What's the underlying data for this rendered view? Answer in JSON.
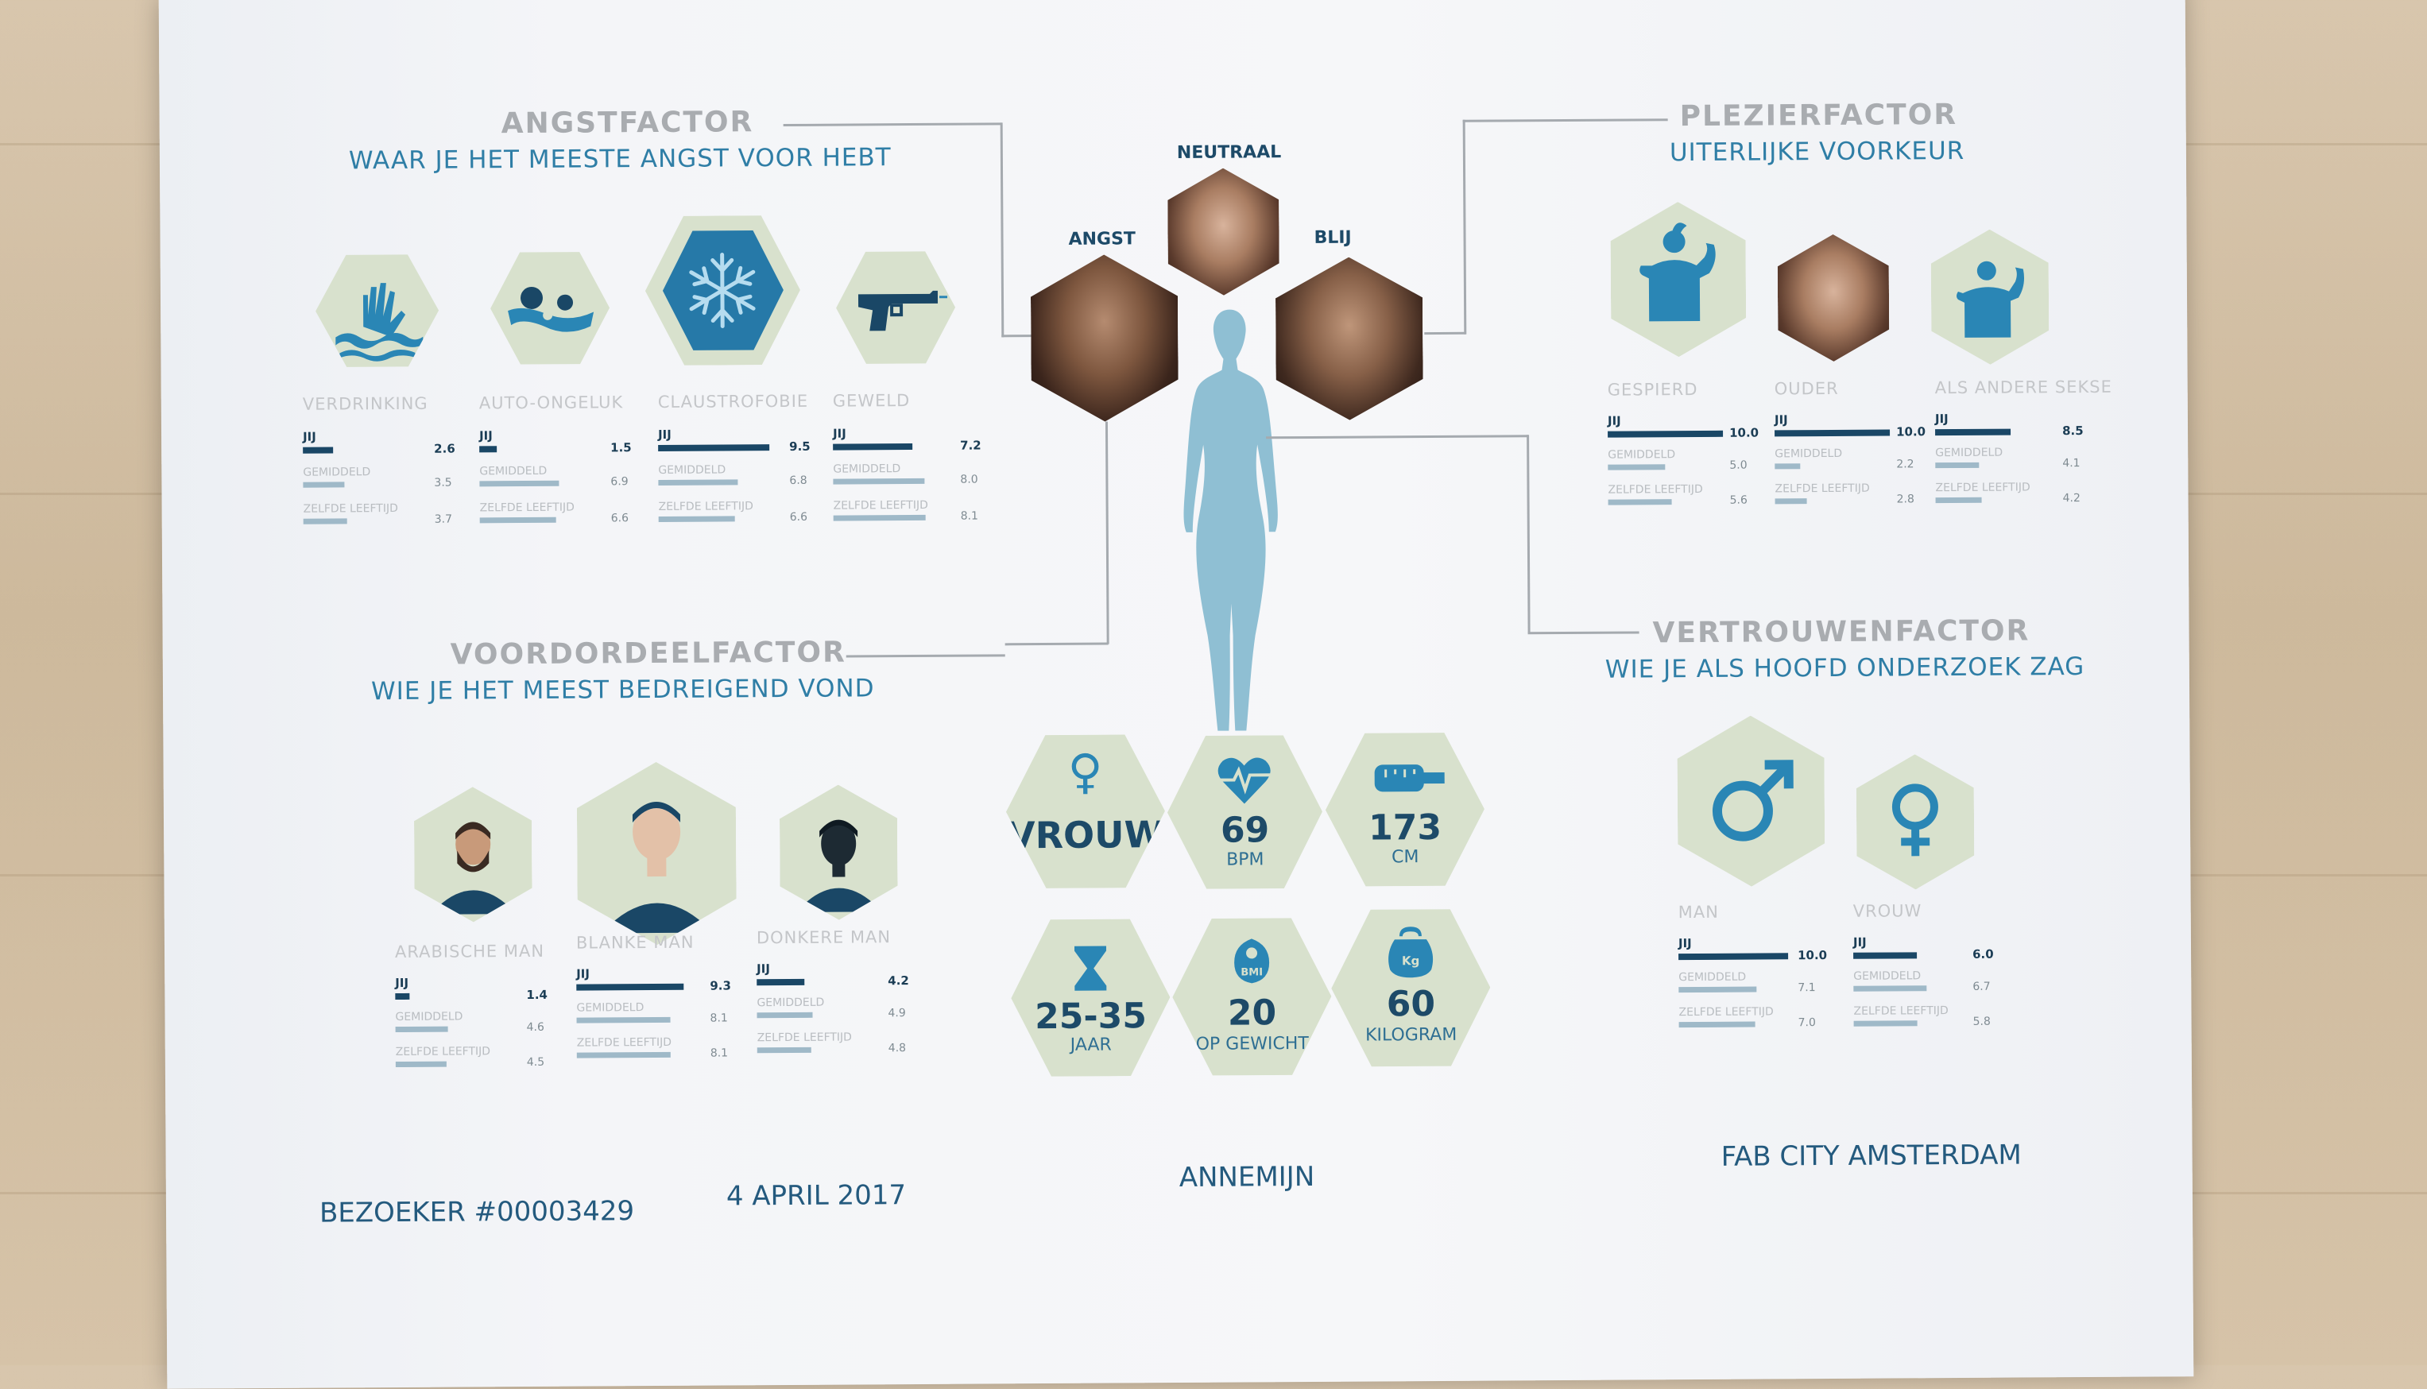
{
  "angst": {
    "title": "ANGSTFACTOR",
    "subtitle": "WAAR JE HET MEESTE ANGST VOOR HEBT",
    "items": [
      {
        "label": "VERDRINKING",
        "icon": "drowning-hand-icon",
        "jij": "2.6",
        "gem": "3.5",
        "zelfde": "3.7",
        "jij_frac": 0.26
      },
      {
        "label": "AUTO-ONGELUK",
        "icon": "car-crash-icon",
        "jij": "1.5",
        "gem": "6.9",
        "zelfde": "6.6",
        "jij_frac": 0.15
      },
      {
        "label": "CLAUSTROFOBIE",
        "icon": "snowflake-icon",
        "jij": "9.5",
        "gem": "6.8",
        "zelfde": "6.6",
        "jij_frac": 0.95
      },
      {
        "label": "GEWELD",
        "icon": "gun-icon",
        "jij": "7.2",
        "gem": "8.0",
        "zelfde": "8.1",
        "jij_frac": 0.72
      }
    ]
  },
  "stat_labels": {
    "jij": "JIJ",
    "gem": "GEMIDDELD",
    "zelfde": "ZELFDE LEEFTIJD"
  },
  "faces": {
    "neutraal": "NEUTRAAL",
    "angst": "ANGST",
    "blij": "BLIJ"
  },
  "plezier": {
    "title": "PLEZIERFACTOR",
    "subtitle": "UITERLIJKE VOORKEUR",
    "items": [
      {
        "label": "GESPIERD",
        "jij": "10.0",
        "gem": "5.0",
        "zelfde": "5.6",
        "jij_frac": 1.0
      },
      {
        "label": "OUDER",
        "jij": "10.0",
        "gem": "2.2",
        "zelfde": "2.8",
        "jij_frac": 1.0
      },
      {
        "label": "ALS ANDERE SEKSE",
        "jij": "8.5",
        "gem": "4.1",
        "zelfde": "4.2",
        "jij_frac": 0.85
      }
    ]
  },
  "vooroordeel": {
    "title": "VOORDORDEELFACTOR",
    "subtitle": "WIE JE HET MEEST BEDREIGEND VOND",
    "items": [
      {
        "label": "ARABISCHE MAN",
        "jij": "1.4",
        "gem": "4.6",
        "zelfde": "4.5",
        "jij_frac": 0.14
      },
      {
        "label": "BLANKE MAN",
        "jij": "9.3",
        "gem": "8.1",
        "zelfde": "8.1",
        "jij_frac": 0.93
      },
      {
        "label": "DONKERE MAN",
        "jij": "4.2",
        "gem": "4.9",
        "zelfde": "4.8",
        "jij_frac": 0.42
      }
    ]
  },
  "vertrouwen": {
    "title": "VERTROUWENFACTOR",
    "subtitle": "WIE JE ALS HOOFD ONDERZOEK ZAG",
    "items": [
      {
        "label": "MAN",
        "jij": "10.0",
        "gem": "7.1",
        "zelfde": "7.0",
        "jij_frac": 1.0
      },
      {
        "label": "VROUW",
        "jij": "6.0",
        "gem": "6.7",
        "zelfde": "5.8",
        "jij_frac": 0.6
      }
    ]
  },
  "stats": {
    "gender": "VROUW",
    "bpm_value": "69",
    "bpm_unit": "BPM",
    "height_value": "173",
    "height_unit": "CM",
    "age_value": "25-35",
    "age_unit": "JAAR",
    "bmi_value": "20",
    "bmi_unit": "OP GEWICHT",
    "weight_value": "60",
    "weight_unit": "KILOGRAM"
  },
  "footer": {
    "visitor": "BEZOEKER #00003429",
    "date": "4 APRIL 2017",
    "name": "ANNEMIJN",
    "venue": "FAB CITY AMSTERDAM"
  },
  "colors": {
    "accent": "#2f7ea6",
    "dark": "#1a4766",
    "hex_fill": "#d8e1cd",
    "silhouette": "#8fbfd3"
  }
}
